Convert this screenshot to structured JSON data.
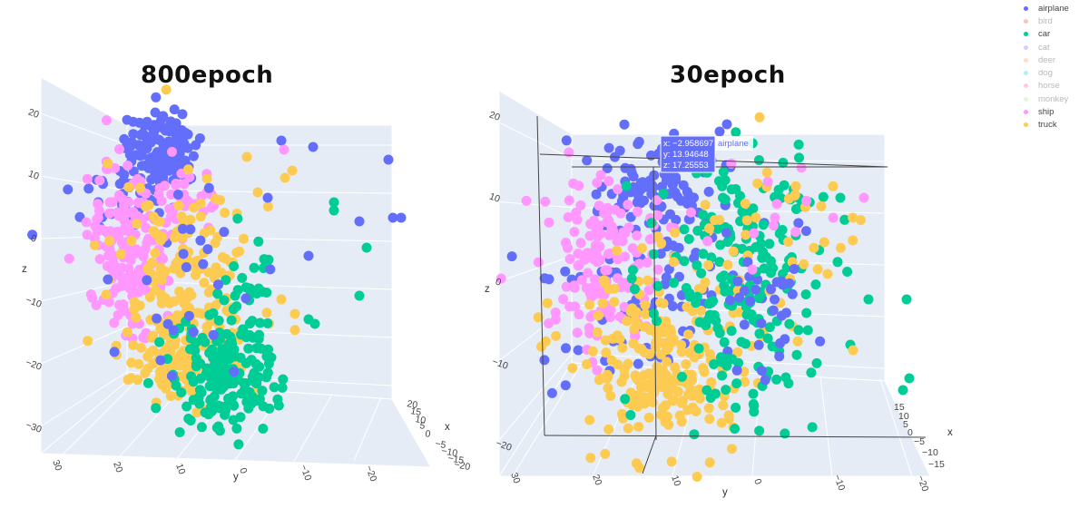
{
  "chart_data": [
    {
      "type": "scatter",
      "title": "800epoch",
      "z_ticks": [
        "20",
        "10",
        "0",
        "−10",
        "−20",
        "−30"
      ],
      "y_ticks": [
        "30",
        "20",
        "10",
        "0",
        "−10",
        "−20"
      ],
      "x_ticks": [
        "20",
        "15",
        "10",
        "5",
        "0",
        "−5",
        "−10",
        "−15",
        "−20"
      ],
      "axis_labels": {
        "x": "x",
        "y": "y",
        "z": "z"
      }
    },
    {
      "type": "scatter",
      "title": "30epoch",
      "z_ticks": [
        "20",
        "10",
        "0",
        "−10",
        "−20"
      ],
      "y_ticks": [
        "30",
        "20",
        "10",
        "0",
        "−10",
        "−20"
      ],
      "x_ticks": [
        "15",
        "10",
        "5",
        "0",
        "−5",
        "−10",
        "−15"
      ],
      "axis_labels": {
        "x": "x",
        "y": "y",
        "z": "z"
      },
      "hover": {
        "x": "x: −2.958697",
        "y": "y: 13.94648",
        "z": "z: 17.25553",
        "label": "airplane"
      }
    }
  ],
  "legend": [
    {
      "name": "airplane",
      "color": "#636efa",
      "visible": true
    },
    {
      "name": "bird",
      "color": "#ef553b",
      "visible": false
    },
    {
      "name": "car",
      "color": "#00cc96",
      "visible": true
    },
    {
      "name": "cat",
      "color": "#ab63fa",
      "visible": false
    },
    {
      "name": "deer",
      "color": "#ffa15a",
      "visible": false
    },
    {
      "name": "dog",
      "color": "#19d3f3",
      "visible": false
    },
    {
      "name": "horse",
      "color": "#ff6692",
      "visible": false
    },
    {
      "name": "monkey",
      "color": "#b6e880",
      "visible": false
    },
    {
      "name": "ship",
      "color": "#ff97ff",
      "visible": true
    },
    {
      "name": "truck",
      "color": "#fecb52",
      "visible": true
    }
  ]
}
